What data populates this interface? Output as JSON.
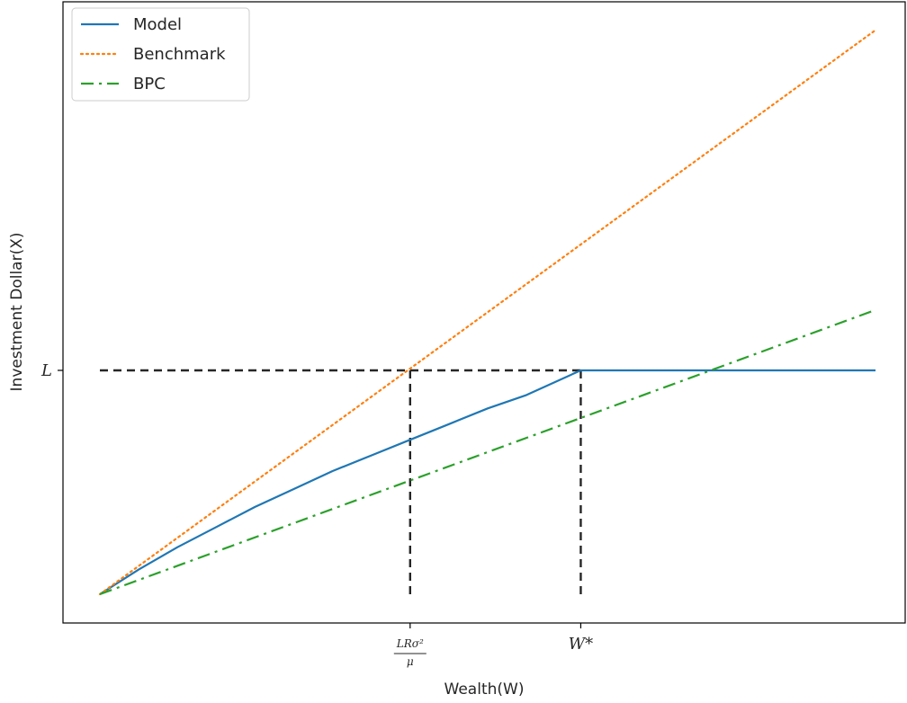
{
  "chart_data": {
    "type": "line",
    "title": "",
    "xlabel": "Wealth(W)",
    "ylabel": "Investment Dollar(X)",
    "xlim": [
      0,
      1.05
    ],
    "ylim": [
      -0.1,
      1.52
    ],
    "grid": false,
    "legend": {
      "placement": "top-left"
    },
    "x_ticks": [
      {
        "value": 0.4,
        "label": {
          "numerator": "LRσ²",
          "denominator": "μ"
        }
      },
      {
        "value": 0.62,
        "label": "W*"
      }
    ],
    "y_ticks": [
      {
        "value": 1.0,
        "label": "L"
      }
    ],
    "series": [
      {
        "name": "Model",
        "color": "#1f77b4",
        "style": "solid",
        "x": [
          0,
          0.05,
          0.1,
          0.15,
          0.2,
          0.25,
          0.3,
          0.35,
          0.4,
          0.45,
          0.5,
          0.55,
          0.62,
          0.7,
          0.8,
          0.9,
          1.0
        ],
        "y": [
          0,
          0.11,
          0.21,
          0.3,
          0.39,
          0.47,
          0.55,
          0.62,
          0.69,
          0.76,
          0.83,
          0.89,
          1.0,
          1.0,
          1.0,
          1.0,
          1.0
        ]
      },
      {
        "name": "Benchmark",
        "color": "#ff7f0e",
        "style": "dotted",
        "x": [
          0,
          1.0
        ],
        "y": [
          0,
          2.52
        ]
      },
      {
        "name": "BPC",
        "color": "#2ca02c",
        "style": "dashdot",
        "x": [
          0,
          1.0
        ],
        "y": [
          0,
          1.27
        ]
      }
    ],
    "reference_lines": [
      {
        "orientation": "horizontal",
        "y": 1.0,
        "x_from": 0,
        "x_to": 0.62,
        "color": "#262626",
        "style": "dashed"
      },
      {
        "orientation": "vertical",
        "x": 0.4,
        "y_from": 0,
        "y_to": 1.0,
        "color": "#262626",
        "style": "dashed"
      },
      {
        "orientation": "vertical",
        "x": 0.62,
        "y_from": 0,
        "y_to": 1.0,
        "color": "#262626",
        "style": "dashed"
      }
    ]
  }
}
